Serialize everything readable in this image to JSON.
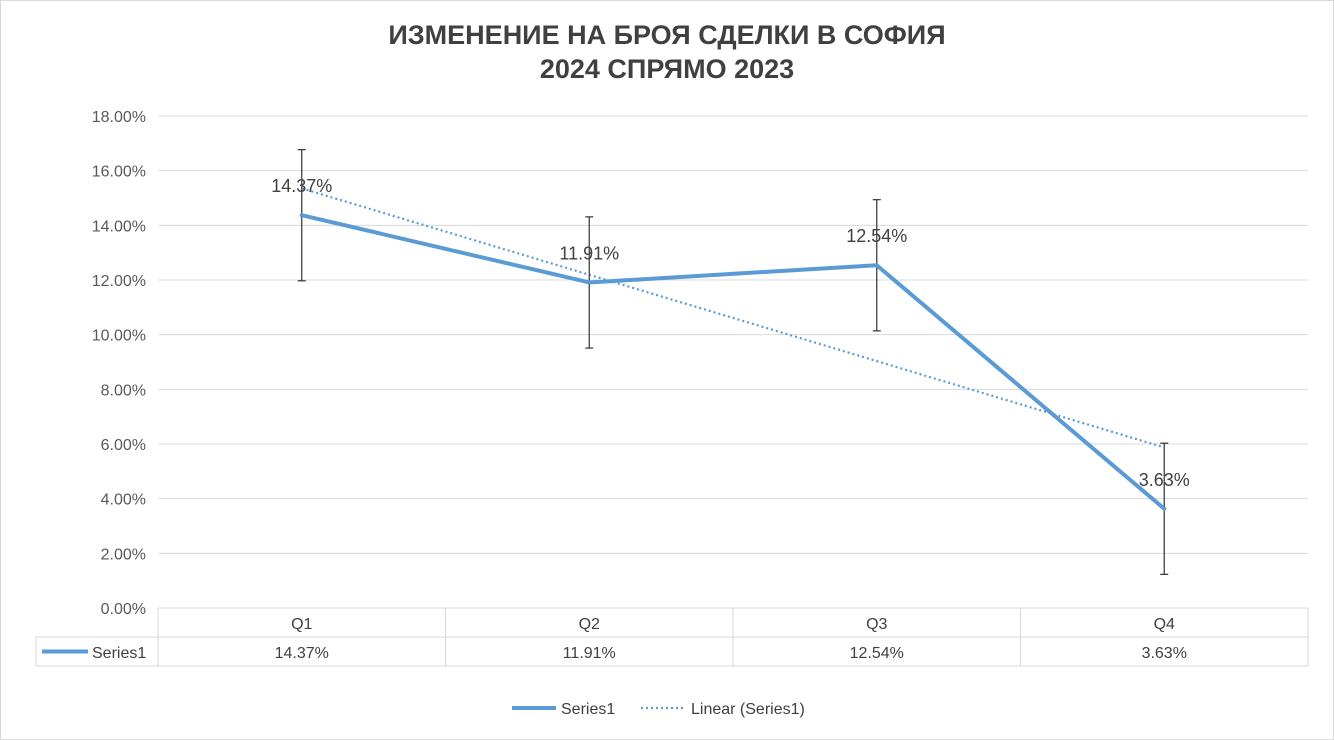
{
  "chart_data": {
    "type": "line",
    "title_line1": "ИЗМЕНЕНИЕ НА БРОЯ СДЕЛКИ В СОФИЯ",
    "title_line2": "2024 СПРЯМО 2023",
    "categories": [
      "Q1",
      "Q2",
      "Q3",
      "Q4"
    ],
    "series": [
      {
        "name": "Series1",
        "values": [
          14.37,
          11.91,
          12.54,
          3.63
        ],
        "labels": [
          "14.37%",
          "11.91%",
          "12.54%",
          "3.63%"
        ],
        "error_bars": {
          "type": "fixed",
          "amount": 2.4
        },
        "color": "#5b9bd5"
      }
    ],
    "trendline": {
      "name": "Linear (Series1)",
      "type": "linear",
      "style": "dotted",
      "color": "#5b9bd5"
    },
    "ylim": [
      0,
      18
    ],
    "yticks": [
      0,
      2,
      4,
      6,
      8,
      10,
      12,
      14,
      16,
      18
    ],
    "ytick_labels": [
      "0.00%",
      "2.00%",
      "4.00%",
      "6.00%",
      "8.00%",
      "10.00%",
      "12.00%",
      "14.00%",
      "16.00%",
      "18.00%"
    ],
    "grid": true,
    "data_table": {
      "row_label": "Series1",
      "values": [
        "14.37%",
        "11.91%",
        "12.54%",
        "3.63%"
      ]
    },
    "legend": {
      "position": "bottom",
      "entries": [
        "Series1",
        "Linear (Series1)"
      ]
    },
    "colors": {
      "gridline": "#d9d9d9",
      "error_bar": "#404040"
    }
  }
}
